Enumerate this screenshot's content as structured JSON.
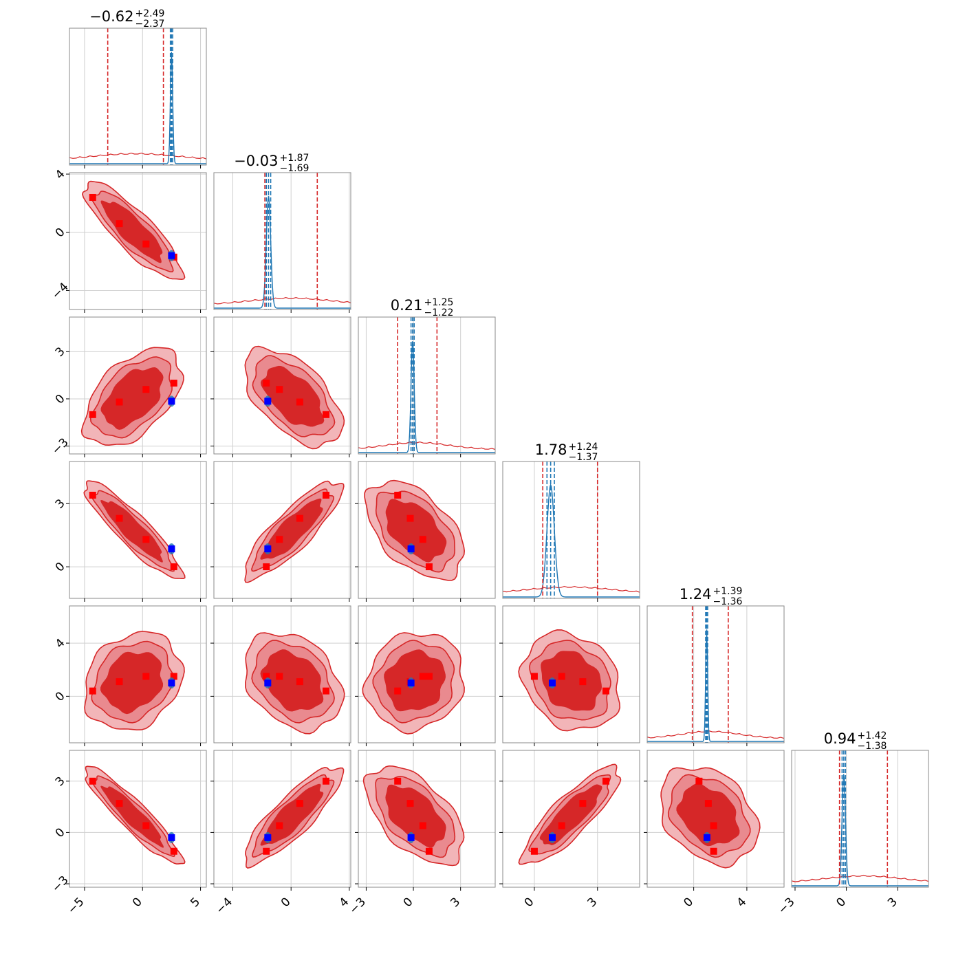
{
  "chart_data": {
    "type": "corner",
    "n_params": 6,
    "grid": true,
    "colors": {
      "posterior_wide": "#d62728",
      "posterior_narrow": "#1f77b4",
      "true_point": "#ff0000",
      "reference_point": "#0000ff",
      "contour_fill_outer": "#f2b5b8",
      "contour_fill_mid": "#e98a8f",
      "contour_fill_inner": "#d62728"
    },
    "titles": [
      {
        "median": "−0.62",
        "plus": "+2.49",
        "minus": "−2.37"
      },
      {
        "median": "−0.03",
        "plus": "+1.87",
        "minus": "−1.69"
      },
      {
        "median": "0.21",
        "plus": "+1.25",
        "minus": "−1.22"
      },
      {
        "median": "1.78",
        "plus": "+1.24",
        "minus": "−1.37"
      },
      {
        "median": "1.24",
        "plus": "+1.39",
        "minus": "−1.36"
      },
      {
        "median": "0.94",
        "plus": "+1.42",
        "minus": "−1.38"
      }
    ],
    "ranges": [
      [
        -6.3,
        5.5
      ],
      [
        -5.3,
        4.1
      ],
      [
        -3.5,
        5.2
      ],
      [
        -1.5,
        5.0
      ],
      [
        -3.5,
        6.8
      ],
      [
        -3.2,
        4.8
      ]
    ],
    "ticks": [
      [
        -5,
        0,
        5
      ],
      [
        -4,
        0,
        4
      ],
      [
        -3,
        0,
        3
      ],
      [
        0,
        3
      ],
      [
        0,
        4
      ],
      [
        -3,
        0,
        3
      ]
    ],
    "tick_labels": [
      [
        "−5",
        "0",
        "5"
      ],
      [
        "−4",
        "0",
        "4"
      ],
      [
        "−3",
        "0",
        "3"
      ],
      [
        "0",
        "3"
      ],
      [
        "0",
        "4"
      ],
      [
        "−3",
        "0",
        "3"
      ]
    ],
    "row_ticks": [
      [],
      [
        -4,
        0,
        4
      ],
      [
        -3,
        0,
        3
      ],
      [
        0,
        3
      ],
      [
        0,
        4
      ],
      [
        -3,
        0,
        3
      ]
    ],
    "row_tick_labels": [
      [],
      [
        "−4",
        "0",
        "4"
      ],
      [
        "−3",
        "0",
        "3"
      ],
      [
        "0",
        "3"
      ],
      [
        "0",
        "4"
      ],
      [
        "−3",
        "0",
        "3"
      ]
    ],
    "wide_quantiles": [
      [
        -3.0,
        1.8
      ],
      [
        -1.8,
        1.8
      ],
      [
        -1.0,
        1.5
      ],
      [
        0.4,
        3.0
      ],
      [
        -0.1,
        2.6
      ],
      [
        -0.4,
        2.4
      ]
    ],
    "narrow_quantiles": [
      [
        2.4,
        2.6
      ],
      [
        -1.7,
        -1.4
      ],
      [
        -0.15,
        0.05
      ],
      [
        0.6,
        0.95
      ],
      [
        0.9,
        1.05
      ],
      [
        -0.25,
        -0.05
      ]
    ],
    "true_points": [
      [
        -4.3,
        2.4,
        -1.0,
        3.4,
        0.4,
        3.0
      ],
      [
        -2.0,
        0.6,
        -0.2,
        2.3,
        1.1,
        1.7
      ],
      [
        0.3,
        -0.8,
        0.6,
        1.3,
        1.5,
        0.4
      ],
      [
        2.7,
        -1.7,
        1.0,
        0.0,
        1.5,
        -1.1
      ]
    ],
    "reference_point": [
      2.5,
      -1.6,
      -0.15,
      0.85,
      1.0,
      -0.3
    ],
    "correlations": [
      [
        1,
        -0.85,
        0.5,
        -0.9,
        0.2,
        -0.92
      ],
      [
        -0.85,
        1,
        -0.55,
        0.85,
        -0.3,
        0.85
      ],
      [
        0.5,
        -0.55,
        1,
        -0.5,
        0.1,
        -0.55
      ],
      [
        -0.9,
        0.85,
        -0.5,
        1,
        -0.2,
        0.85
      ],
      [
        0.2,
        -0.3,
        0.1,
        -0.2,
        1,
        -0.3
      ],
      [
        -0.92,
        0.85,
        -0.55,
        0.85,
        -0.3,
        1
      ]
    ]
  }
}
